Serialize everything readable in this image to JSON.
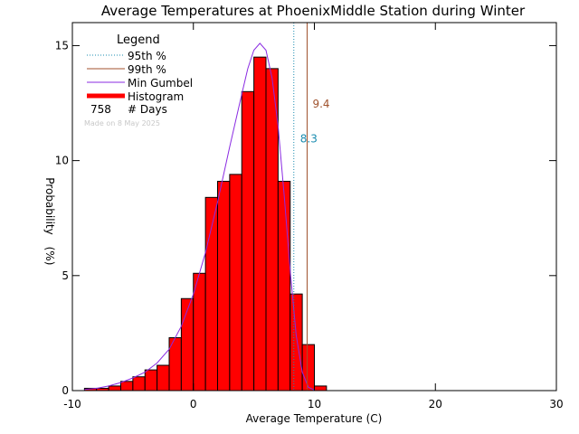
{
  "chart_data": {
    "type": "bar",
    "title": "Average Temperatures at PhoenixMiddle Station during Winter",
    "xlabel": "Average Temperature (C)",
    "ylabel_line1": "Probability",
    "ylabel_line2": "(%)",
    "xlim": [
      -10,
      30
    ],
    "ylim": [
      0,
      16
    ],
    "xticks": [
      -10,
      0,
      10,
      20,
      30
    ],
    "xtick_labels": [
      "-10",
      "0",
      "10",
      "20",
      "30"
    ],
    "yticks": [
      0,
      5,
      10,
      15
    ],
    "ytick_labels": [
      "0",
      "5",
      "10",
      "15"
    ],
    "bin_width": 1,
    "bins": [
      {
        "x0": -9,
        "value": 0.1
      },
      {
        "x0": -8,
        "value": 0.1
      },
      {
        "x0": -7,
        "value": 0.2
      },
      {
        "x0": -6,
        "value": 0.4
      },
      {
        "x0": -5,
        "value": 0.6
      },
      {
        "x0": -4,
        "value": 0.9
      },
      {
        "x0": -3,
        "value": 1.1
      },
      {
        "x0": -2,
        "value": 2.3
      },
      {
        "x0": -1,
        "value": 4.0
      },
      {
        "x0": 0,
        "value": 5.1
      },
      {
        "x0": 1,
        "value": 8.4
      },
      {
        "x0": 2,
        "value": 9.1
      },
      {
        "x0": 3,
        "value": 9.4
      },
      {
        "x0": 4,
        "value": 13.0
      },
      {
        "x0": 5,
        "value": 14.5
      },
      {
        "x0": 6,
        "value": 14.0
      },
      {
        "x0": 7,
        "value": 9.1
      },
      {
        "x0": 8,
        "value": 4.2
      },
      {
        "x0": 9,
        "value": 2.0
      },
      {
        "x0": 10,
        "value": 0.2
      }
    ],
    "gumbel_curve": [
      [
        -9,
        0.05
      ],
      [
        -8,
        0.1
      ],
      [
        -7,
        0.2
      ],
      [
        -6,
        0.35
      ],
      [
        -5,
        0.55
      ],
      [
        -4,
        0.8
      ],
      [
        -3,
        1.2
      ],
      [
        -2,
        1.8
      ],
      [
        -1,
        2.8
      ],
      [
        0,
        4.2
      ],
      [
        1,
        6.0
      ],
      [
        2,
        8.2
      ],
      [
        3,
        10.6
      ],
      [
        4,
        12.9
      ],
      [
        4.5,
        14.0
      ],
      [
        5,
        14.8
      ],
      [
        5.5,
        15.1
      ],
      [
        6,
        14.8
      ],
      [
        6.5,
        13.6
      ],
      [
        7,
        11.5
      ],
      [
        7.5,
        8.5
      ],
      [
        8,
        5.2
      ],
      [
        8.5,
        2.4
      ],
      [
        9,
        0.8
      ],
      [
        9.5,
        0.15
      ],
      [
        10,
        0.02
      ]
    ],
    "percentile_95": 8.3,
    "percentile_99": 9.4,
    "percentile_95_label": "8.3",
    "percentile_99_label": "9.4",
    "legend_placement": "top-left",
    "legend": {
      "title": "Legend",
      "entries": [
        {
          "label": "95th %",
          "color": "#1a8cb0",
          "style": "dotted"
        },
        {
          "label": "99th %",
          "color": "#a0522d",
          "style": "solid"
        },
        {
          "label": "Min Gumbel",
          "color": "#8a2be2",
          "style": "solid"
        },
        {
          "label": "Histogram",
          "color": "#ff0000",
          "style": "thick"
        }
      ],
      "days_count": "758",
      "days_label": "# Days",
      "made_on": "Made on 8 May 2025"
    },
    "colors": {
      "histogram_fill": "#ff0000",
      "histogram_edge": "#000000",
      "gumbel": "#8a2be2",
      "p95": "#1a8cb0",
      "p99": "#a0522d",
      "made_on": "#c8c8c8"
    }
  }
}
